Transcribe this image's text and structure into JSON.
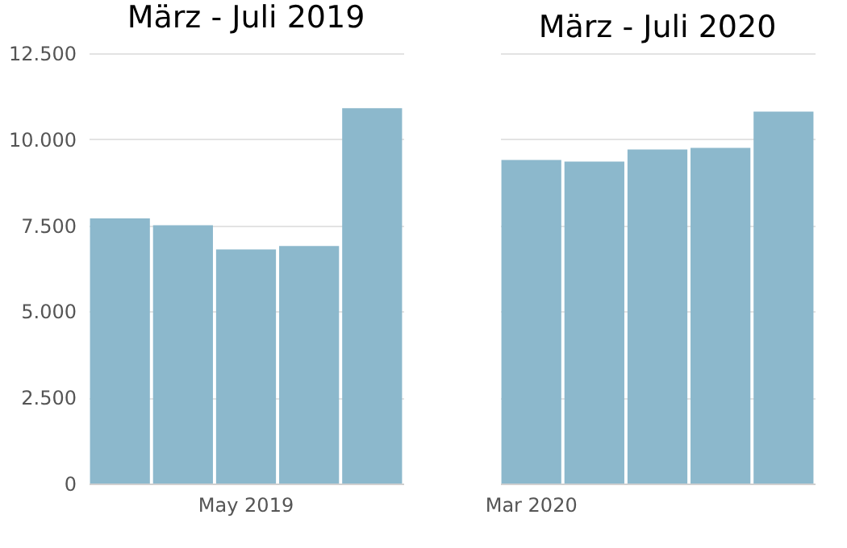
{
  "chart_data": [
    {
      "type": "bar",
      "title": "März - Juli 2019",
      "categories": [
        null,
        null,
        "May 2019",
        null,
        null
      ],
      "values": [
        7700,
        7500,
        6800,
        6900,
        10900
      ],
      "color": "#8cb8cc",
      "ylim": [
        0,
        12500
      ],
      "yticks": [
        0,
        {
          "value": 2500,
          "label": "2.500"
        },
        {
          "value": 5000,
          "label": "5.000"
        },
        {
          "value": 7500,
          "label": "7.500"
        },
        {
          "value": 10000,
          "label": "10.000"
        },
        {
          "value": 12500,
          "label": "12.500"
        }
      ],
      "grid": "y"
    },
    {
      "type": "bar",
      "title": "März - Juli 2020",
      "categories": [
        "Mar 2020",
        null,
        null,
        null,
        null
      ],
      "values": [
        9400,
        9350,
        9700,
        9750,
        10800
      ],
      "color": "#8cb8cc",
      "ylim": [
        0,
        12500
      ],
      "yticks": [
        0,
        2500,
        5000,
        7500,
        10000,
        12500
      ],
      "grid": "y",
      "tick_labels": "x"
    }
  ]
}
